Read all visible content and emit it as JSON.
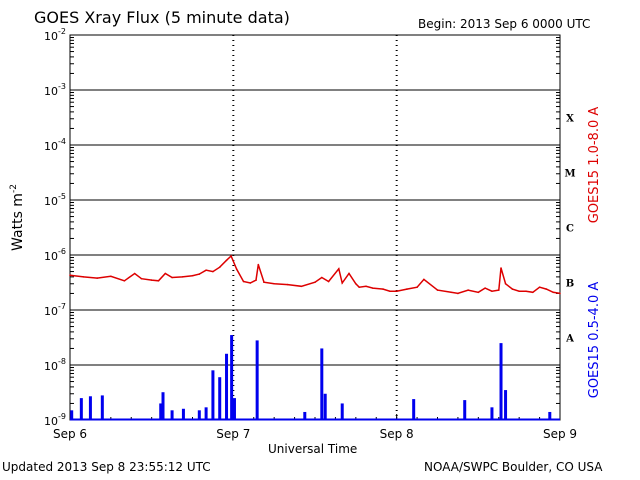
{
  "header": {
    "title": "GOES Xray Flux (5 minute data)",
    "begin": "Begin:  2013 Sep 6 0000 UTC"
  },
  "footer": {
    "updated": "Updated 2013 Sep  8 23:55:12 UTC",
    "credit": "NOAA/SWPC Boulder, CO USA"
  },
  "chart_data": {
    "type": "line",
    "title": "GOES Xray Flux (5 minute data)",
    "xlabel": "Universal Time",
    "ylabel": "Watts m",
    "ylabel_sup": "-2",
    "y_scale": "log",
    "ylim": [
      1e-09,
      0.01
    ],
    "xlim": [
      "2013-09-06T00:00",
      "2013-09-09T00:00"
    ],
    "x_ticks": [
      {
        "label": "Sep 6",
        "t": "2013-09-06T00:00"
      },
      {
        "label": "Sep 7",
        "t": "2013-09-07T00:00"
      },
      {
        "label": "Sep 8",
        "t": "2013-09-08T00:00"
      },
      {
        "label": "Sep 9",
        "t": "2013-09-09T00:00"
      }
    ],
    "y_ticks": [
      {
        "mant": "10",
        "exp": "-2",
        "v": 0.01
      },
      {
        "mant": "10",
        "exp": "-3",
        "v": 0.001
      },
      {
        "mant": "10",
        "exp": "-4",
        "v": 0.0001
      },
      {
        "mant": "10",
        "exp": "-5",
        "v": 1e-05
      },
      {
        "mant": "10",
        "exp": "-6",
        "v": 1e-06
      },
      {
        "mant": "10",
        "exp": "-7",
        "v": 1e-07
      },
      {
        "mant": "10",
        "exp": "-8",
        "v": 1e-08
      },
      {
        "mant": "10",
        "exp": "-9",
        "v": 1e-09
      }
    ],
    "flare_classes": [
      {
        "label": "X",
        "v": 0.000316
      },
      {
        "label": "M",
        "v": 3.16e-05
      },
      {
        "label": "C",
        "v": 3.16e-06
      },
      {
        "label": "B",
        "v": 3.16e-07
      },
      {
        "label": "A",
        "v": 3.16e-08
      }
    ],
    "grid": "horizontal lines at decades; dashed vertical lines at day boundaries",
    "series": [
      {
        "name": "GOES15 1.0-8.0 A",
        "color": "#dd0000",
        "x": [
          "2013-09-06T00:00",
          "2013-09-06T02:00",
          "2013-09-06T04:00",
          "2013-09-06T06:00",
          "2013-09-06T08:00",
          "2013-09-06T09:30",
          "2013-09-06T10:30",
          "2013-09-06T12:00",
          "2013-09-06T13:00",
          "2013-09-06T14:00",
          "2013-09-06T15:00",
          "2013-09-06T16:30",
          "2013-09-06T18:00",
          "2013-09-06T19:00",
          "2013-09-06T20:00",
          "2013-09-06T21:00",
          "2013-09-06T22:00",
          "2013-09-06T23:00",
          "2013-09-06T23:40",
          "2013-09-07T00:30",
          "2013-09-07T01:30",
          "2013-09-07T02:30",
          "2013-09-07T03:20",
          "2013-09-07T03:40",
          "2013-09-07T04:30",
          "2013-09-07T06:00",
          "2013-09-07T08:00",
          "2013-09-07T10:00",
          "2013-09-07T12:00",
          "2013-09-07T13:00",
          "2013-09-07T14:00",
          "2013-09-07T15:30",
          "2013-09-07T16:00",
          "2013-09-07T17:00",
          "2013-09-07T18:00",
          "2013-09-07T18:30",
          "2013-09-07T19:30",
          "2013-09-07T20:30",
          "2013-09-07T22:00",
          "2013-09-07T23:00",
          "2013-09-08T00:00",
          "2013-09-08T01:30",
          "2013-09-08T03:00",
          "2013-09-08T04:00",
          "2013-09-08T06:00",
          "2013-09-08T08:00",
          "2013-09-08T09:00",
          "2013-09-08T10:30",
          "2013-09-08T12:00",
          "2013-09-08T13:00",
          "2013-09-08T14:00",
          "2013-09-08T15:00",
          "2013-09-08T15:20",
          "2013-09-08T16:00",
          "2013-09-08T17:00",
          "2013-09-08T18:00",
          "2013-09-08T19:00",
          "2013-09-08T20:00",
          "2013-09-08T21:00",
          "2013-09-08T22:00",
          "2013-09-08T23:00",
          "2013-09-09T00:00"
        ],
        "y": [
          4.3e-07,
          4e-07,
          3.8e-07,
          4.1e-07,
          3.4e-07,
          4.6e-07,
          3.7e-07,
          3.5e-07,
          3.4e-07,
          4.6e-07,
          3.9e-07,
          4e-07,
          4.2e-07,
          4.5e-07,
          5.3e-07,
          5e-07,
          6e-07,
          8e-07,
          9.6e-07,
          5.5e-07,
          3.3e-07,
          3.1e-07,
          3.5e-07,
          6.7e-07,
          3.2e-07,
          3e-07,
          2.9e-07,
          2.7e-07,
          3.2e-07,
          3.9e-07,
          3.3e-07,
          5.6e-07,
          3.1e-07,
          4.6e-07,
          3e-07,
          2.6e-07,
          2.7e-07,
          2.5e-07,
          2.4e-07,
          2.2e-07,
          2.2e-07,
          2.4e-07,
          2.6e-07,
          3.6e-07,
          2.3e-07,
          2.1e-07,
          2e-07,
          2.3e-07,
          2.1e-07,
          2.5e-07,
          2.2e-07,
          2.3e-07,
          5.8e-07,
          3e-07,
          2.4e-07,
          2.2e-07,
          2.2e-07,
          2.1e-07,
          2.6e-07,
          2.4e-07,
          2.1e-07,
          2e-07
        ]
      },
      {
        "name": "GOES15 0.5-4.0 A",
        "color": "#0000ee",
        "baseline": 1e-09,
        "x": [
          "2013-09-06T00:15",
          "2013-09-06T01:40",
          "2013-09-06T03:00",
          "2013-09-06T04:45",
          "2013-09-06T13:20",
          "2013-09-06T13:40",
          "2013-09-06T15:00",
          "2013-09-06T16:40",
          "2013-09-06T19:00",
          "2013-09-06T20:00",
          "2013-09-06T21:00",
          "2013-09-06T22:00",
          "2013-09-06T23:00",
          "2013-09-06T23:45",
          "2013-09-07T00:10",
          "2013-09-07T03:30",
          "2013-09-07T10:30",
          "2013-09-07T13:00",
          "2013-09-07T13:30",
          "2013-09-07T16:00",
          "2013-09-08T02:30",
          "2013-09-08T10:00",
          "2013-09-08T14:00",
          "2013-09-08T15:20",
          "2013-09-08T16:00",
          "2013-09-08T22:30"
        ],
        "y": [
          1.5e-09,
          2.5e-09,
          2.7e-09,
          2.8e-09,
          2e-09,
          3.2e-09,
          1.5e-09,
          1.6e-09,
          1.5e-09,
          1.7e-09,
          8e-09,
          6e-09,
          1.6e-08,
          3.5e-08,
          2.5e-09,
          2.8e-08,
          1.4e-09,
          2e-08,
          3e-09,
          2e-09,
          2.4e-09,
          2.3e-09,
          1.7e-09,
          2.5e-08,
          3.5e-09,
          1.4e-09
        ]
      }
    ]
  }
}
